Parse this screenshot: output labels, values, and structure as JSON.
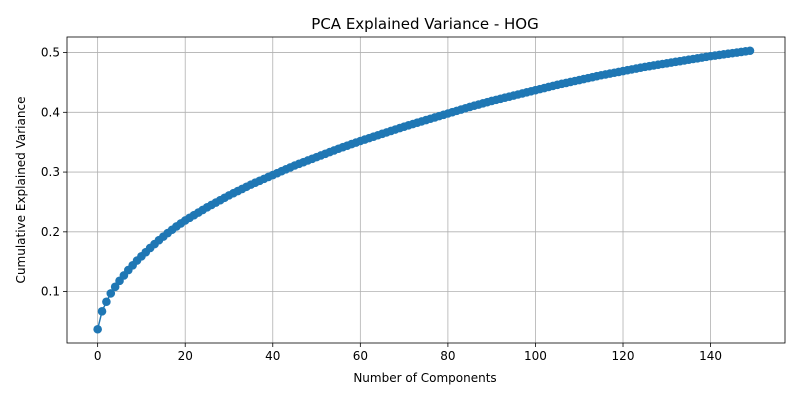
{
  "chart_data": {
    "type": "line",
    "title": "PCA Explained Variance - HOG",
    "xlabel": "Number of Components",
    "ylabel": "Cumulative Explained Variance",
    "xlim": [
      -7,
      157
    ],
    "ylim": [
      0.014,
      0.526
    ],
    "xticks": [
      0,
      20,
      40,
      60,
      80,
      100,
      120,
      140
    ],
    "yticks": [
      0.1,
      0.2,
      0.3,
      0.4,
      0.5
    ],
    "xtick_labels": [
      "0",
      "20",
      "40",
      "60",
      "80",
      "100",
      "120",
      "140"
    ],
    "ytick_labels": [
      "0.1",
      "0.2",
      "0.3",
      "0.4",
      "0.5"
    ],
    "grid": true,
    "marker": "circle",
    "color": "#1f77b4",
    "anchors": {
      "x": [
        0,
        1,
        2,
        3,
        4,
        5,
        6,
        7,
        8,
        9,
        10,
        12,
        14,
        16,
        18,
        20,
        25,
        30,
        35,
        40,
        45,
        50,
        55,
        60,
        65,
        70,
        75,
        80,
        85,
        90,
        95,
        100,
        105,
        110,
        115,
        120,
        125,
        130,
        135,
        140,
        145,
        149
      ],
      "y": [
        0.037,
        0.067,
        0.083,
        0.097,
        0.108,
        0.118,
        0.127,
        0.136,
        0.144,
        0.152,
        0.159,
        0.173,
        0.186,
        0.198,
        0.209,
        0.219,
        0.241,
        0.261,
        0.279,
        0.295,
        0.311,
        0.325,
        0.339,
        0.352,
        0.364,
        0.376,
        0.387,
        0.398,
        0.409,
        0.419,
        0.428,
        0.437,
        0.446,
        0.454,
        0.462,
        0.469,
        0.476,
        0.482,
        0.488,
        0.494,
        0.499,
        0.503
      ]
    }
  }
}
